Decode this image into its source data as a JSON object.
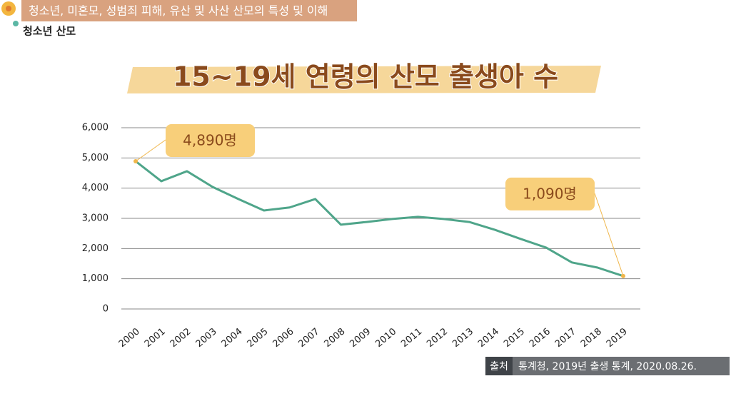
{
  "header": {
    "title": "청소년, 미혼모, 성범죄 피해, 유산 및 사산 산모의 특성 및 이해",
    "subtitle": "청소년 산모"
  },
  "chart_data": {
    "type": "line",
    "title": "15~19세 연령의 산모 출생아 수",
    "categories": [
      "2000",
      "2001",
      "2002",
      "2003",
      "2004",
      "2005",
      "2006",
      "2007",
      "2008",
      "2009",
      "2010",
      "2011",
      "2012",
      "2013",
      "2014",
      "2015",
      "2016",
      "2017",
      "2018",
      "2019"
    ],
    "values": [
      4890,
      4230,
      4560,
      4040,
      3640,
      3260,
      3360,
      3640,
      2790,
      2880,
      2980,
      3050,
      2980,
      2880,
      2620,
      2320,
      2030,
      1540,
      1370,
      1090
    ],
    "value_labels": [
      "4,890명",
      null,
      null,
      null,
      null,
      null,
      null,
      null,
      null,
      null,
      null,
      null,
      null,
      null,
      null,
      null,
      null,
      null,
      null,
      "1,090명"
    ],
    "color": "#4fa58a",
    "ylim": [
      0,
      6000
    ],
    "yticks": [
      0,
      {
        "value": 1000,
        "label": "1,000"
      },
      {
        "value": 2000,
        "label": "2,000"
      },
      {
        "value": 3000,
        "label": "3,000"
      },
      {
        "value": 4000,
        "label": "4,000"
      },
      {
        "value": 5000,
        "label": "5,000"
      },
      {
        "value": 6000,
        "label": "6,000"
      }
    ],
    "grid": true
  },
  "source": {
    "label": "출처",
    "text": "통계청, 2019년 출생 통계, 2020.08.26."
  }
}
